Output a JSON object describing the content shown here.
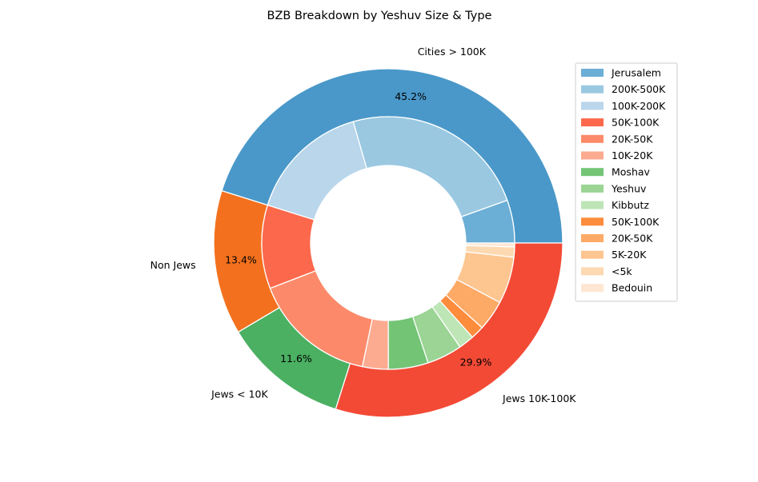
{
  "chart_data": {
    "type": "pie",
    "subtype": "nested-donut",
    "title": "BZB Breakdown by Yeshuv Size & Type",
    "legend_position": "right",
    "outer": [
      {
        "label": "Cities > 100K",
        "pct_label": "45.2%",
        "value": 45.2,
        "color": "#4a98c9"
      },
      {
        "label": "Non Jews",
        "pct_label": "13.4%",
        "value": 13.4,
        "color": "#f3711e"
      },
      {
        "label": "Jews < 10K",
        "pct_label": "11.6%",
        "value": 11.6,
        "color": "#4bb062"
      },
      {
        "label": "Jews 10K-100K",
        "pct_label": "29.9%",
        "value": 29.9,
        "color": "#f34a36"
      }
    ],
    "inner": [
      {
        "label": "Jerusalem",
        "value": 5.5,
        "color": "#6baed6"
      },
      {
        "label": "200K-500K",
        "value": 24.0,
        "color": "#9ac8e1"
      },
      {
        "label": "100K-200K",
        "value": 15.7,
        "color": "#b9d6eb"
      },
      {
        "label": "50K-100K",
        "value": 10.7,
        "color": "#fc684c"
      },
      {
        "label": "20K-50K",
        "value": 15.9,
        "color": "#fc8a6a"
      },
      {
        "label": "10K-20K",
        "value": 3.3,
        "color": "#fcab90"
      },
      {
        "label": "Moshav",
        "value": 5.1,
        "color": "#74c476"
      },
      {
        "label": "Yeshuv",
        "value": 4.5,
        "color": "#9bd494"
      },
      {
        "label": "Kibbutz",
        "value": 2.0,
        "color": "#bde5b6"
      },
      {
        "label": "50K-100K",
        "value": 1.7,
        "color": "#fd8c3c"
      },
      {
        "label": "20K-50K",
        "value": 3.9,
        "color": "#fdaa66"
      },
      {
        "label": "5K-20K",
        "value": 6.0,
        "color": "#fdc590"
      },
      {
        "label": "<5k",
        "value": 1.3,
        "color": "#fdd9b1"
      },
      {
        "label": "Bedouin",
        "value": 0.5,
        "color": "#fee7d2"
      }
    ]
  }
}
